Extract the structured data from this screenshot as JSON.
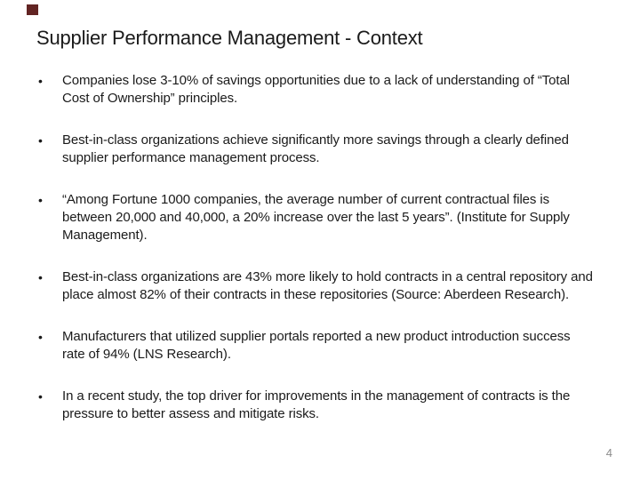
{
  "slide": {
    "title": "Supplier Performance Management - Context",
    "bullet_marker": "•",
    "bullets": [
      "Companies lose 3-10% of savings opportunities due to a lack of understanding of “Total Cost of Ownership” principles.",
      "Best-in-class organizations achieve significantly more savings through a clearly defined supplier performance management process.",
      "“Among Fortune 1000 companies, the average number of current contractual files is between 20,000 and 40,000, a 20% increase over the last 5 years”. (Institute for Supply Management).",
      "Best-in-class organizations are 43% more likely to hold contracts in a central repository and place almost 82% of their contracts in these repositories (Source: Aberdeen Research).",
      "Manufacturers that utilized supplier portals reported a new product introduction success rate of 94% (LNS Research).",
      "In a recent study, the top driver for improvements in the management of contracts is the pressure to better assess and mitigate risks."
    ],
    "page_number": "4",
    "colors": {
      "accent": "#622423",
      "text": "#1a1a1a",
      "page_number": "#8c8c8c",
      "background": "#ffffff"
    }
  }
}
